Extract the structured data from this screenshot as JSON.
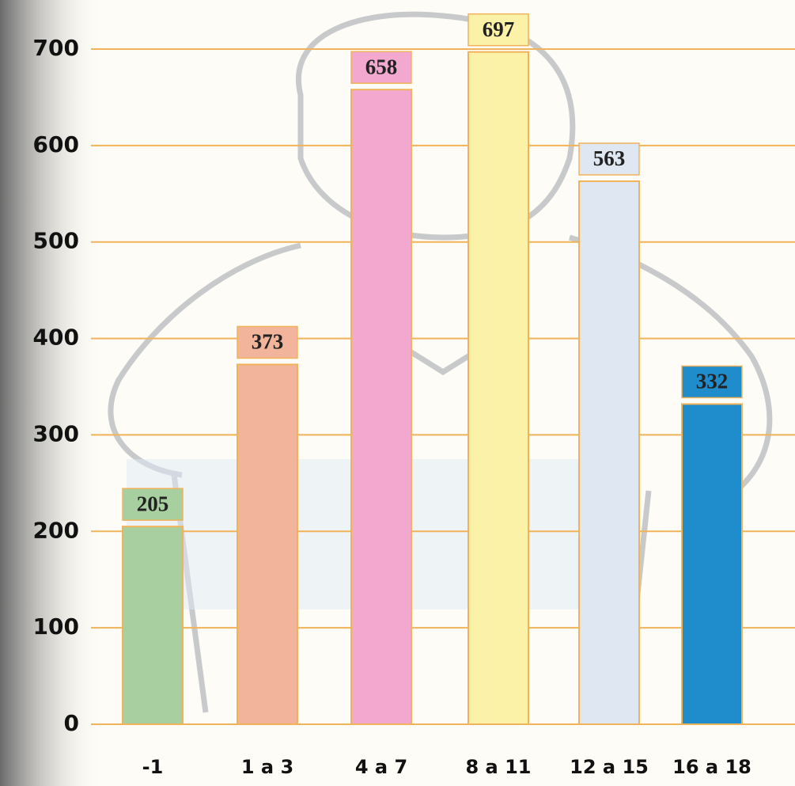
{
  "chart_data": {
    "type": "bar",
    "categories": [
      "-1",
      "1 a 3",
      "4 a 7",
      "8 a 11",
      "12 a 15",
      "16 a 18"
    ],
    "values": [
      205,
      373,
      658,
      697,
      563,
      332
    ],
    "colors": [
      "#a8cf9f",
      "#f2b59c",
      "#f3a9cf",
      "#fbf2a8",
      "#dfe7f3",
      "#1f8ccc"
    ],
    "ylim": [
      0,
      700
    ],
    "yticks": [
      0,
      100,
      200,
      300,
      400,
      500,
      600,
      700
    ],
    "grid": true
  }
}
